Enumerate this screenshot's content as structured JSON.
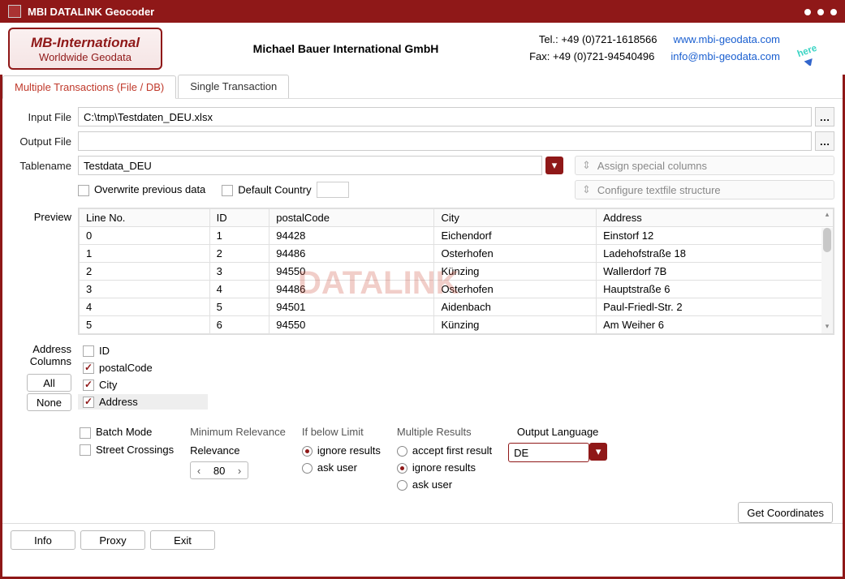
{
  "title": "MBI DATALINK Geocoder",
  "logo": {
    "line1": "MB-International",
    "line2": "Worldwide Geodata"
  },
  "company": "Michael Bauer International GmbH",
  "contact": {
    "tel_label": "Tel.: +49 (0)721-1618566",
    "fax_label": "Fax: +49 (0)721-94540496",
    "web": "www.mbi-geodata.com",
    "email": "info@mbi-geodata.com"
  },
  "tabs": {
    "file": "Multiple Transactions (File / DB)",
    "single": "Single Transaction"
  },
  "labels": {
    "input_file": "Input File",
    "output_file": "Output File",
    "tablename": "Tablename",
    "preview": "Preview",
    "address_columns": "Address\nColumns",
    "overwrite": "Overwrite previous data",
    "default_country": "Default Country",
    "assign_special": "Assign special columns",
    "configure_textfile": "Configure textfile structure",
    "all": "All",
    "none": "None",
    "batch_mode": "Batch Mode",
    "street_crossings": "Street Crossings",
    "min_relevance": "Minimum Relevance",
    "relevance": "Relevance",
    "if_below": "If below Limit",
    "ignore_results": "ignore results",
    "ask_user": "ask user",
    "multiple_results": "Multiple Results",
    "accept_first": "accept first result",
    "output_language": "Output Language",
    "get_coordinates": "Get Coordinates",
    "info": "Info",
    "proxy": "Proxy",
    "exit": "Exit"
  },
  "values": {
    "input_file": "C:\\tmp\\Testdaten_DEU.xlsx",
    "output_file": "",
    "tablename": "Testdata_DEU",
    "default_country": "",
    "relevance": "80",
    "output_language": "DE"
  },
  "checkboxes": {
    "overwrite": false,
    "batch_mode": false,
    "street_crossings": false
  },
  "radios": {
    "if_below": "ignore",
    "multiple": "ignore"
  },
  "preview": {
    "columns": [
      "Line No.",
      "ID",
      "postalCode",
      "City",
      "Address"
    ],
    "rows": [
      [
        "0",
        "1",
        "94428",
        "Eichendorf",
        "Einstorf 12"
      ],
      [
        "1",
        "2",
        "94486",
        "Osterhofen",
        "Ladehofstraße 18"
      ],
      [
        "2",
        "3",
        "94550",
        "Künzing",
        "Wallerdorf 7B"
      ],
      [
        "3",
        "4",
        "94486",
        "Osterhofen",
        "Hauptstraße 6"
      ],
      [
        "4",
        "5",
        "94501",
        "Aidenbach",
        "Paul-Friedl-Str. 2"
      ],
      [
        "5",
        "6",
        "94550",
        "Künzing",
        "Am Weiher 6"
      ]
    ]
  },
  "address_columns": [
    {
      "name": "ID",
      "checked": false,
      "selected": false
    },
    {
      "name": "postalCode",
      "checked": true,
      "selected": false
    },
    {
      "name": "City",
      "checked": true,
      "selected": false
    },
    {
      "name": "Address",
      "checked": true,
      "selected": true
    }
  ],
  "colors": {
    "brand": "#8f1818",
    "link": "#1a5fd0",
    "text": "#222222"
  }
}
